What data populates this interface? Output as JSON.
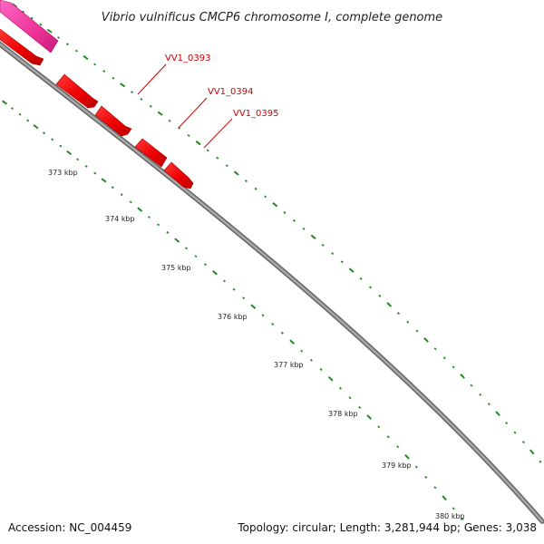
{
  "title": "Vibrio vulnificus CMCP6 chromosome I, complete genome",
  "footer": {
    "accession": "Accession: NC_004459",
    "summary": "Topology: circular; Length: 3,281,944 bp; Genes: 3,038"
  },
  "colors": {
    "backbone": "#888888",
    "backbone_dark": "#555555",
    "gene_red": "#ee0000",
    "gene_pink": "#ee3399",
    "gene_label": "#cc0000",
    "tick": "#228822",
    "text": "#222222"
  },
  "scale_ticks": [
    "373 kbp",
    "374 kbp",
    "375 kbp",
    "376 kbp",
    "377 kbp",
    "378 kbp",
    "379 kbp",
    "380 kbp"
  ],
  "gene_labels": [
    "VV1_0393",
    "VV1_0394",
    "VV1_0395"
  ]
}
